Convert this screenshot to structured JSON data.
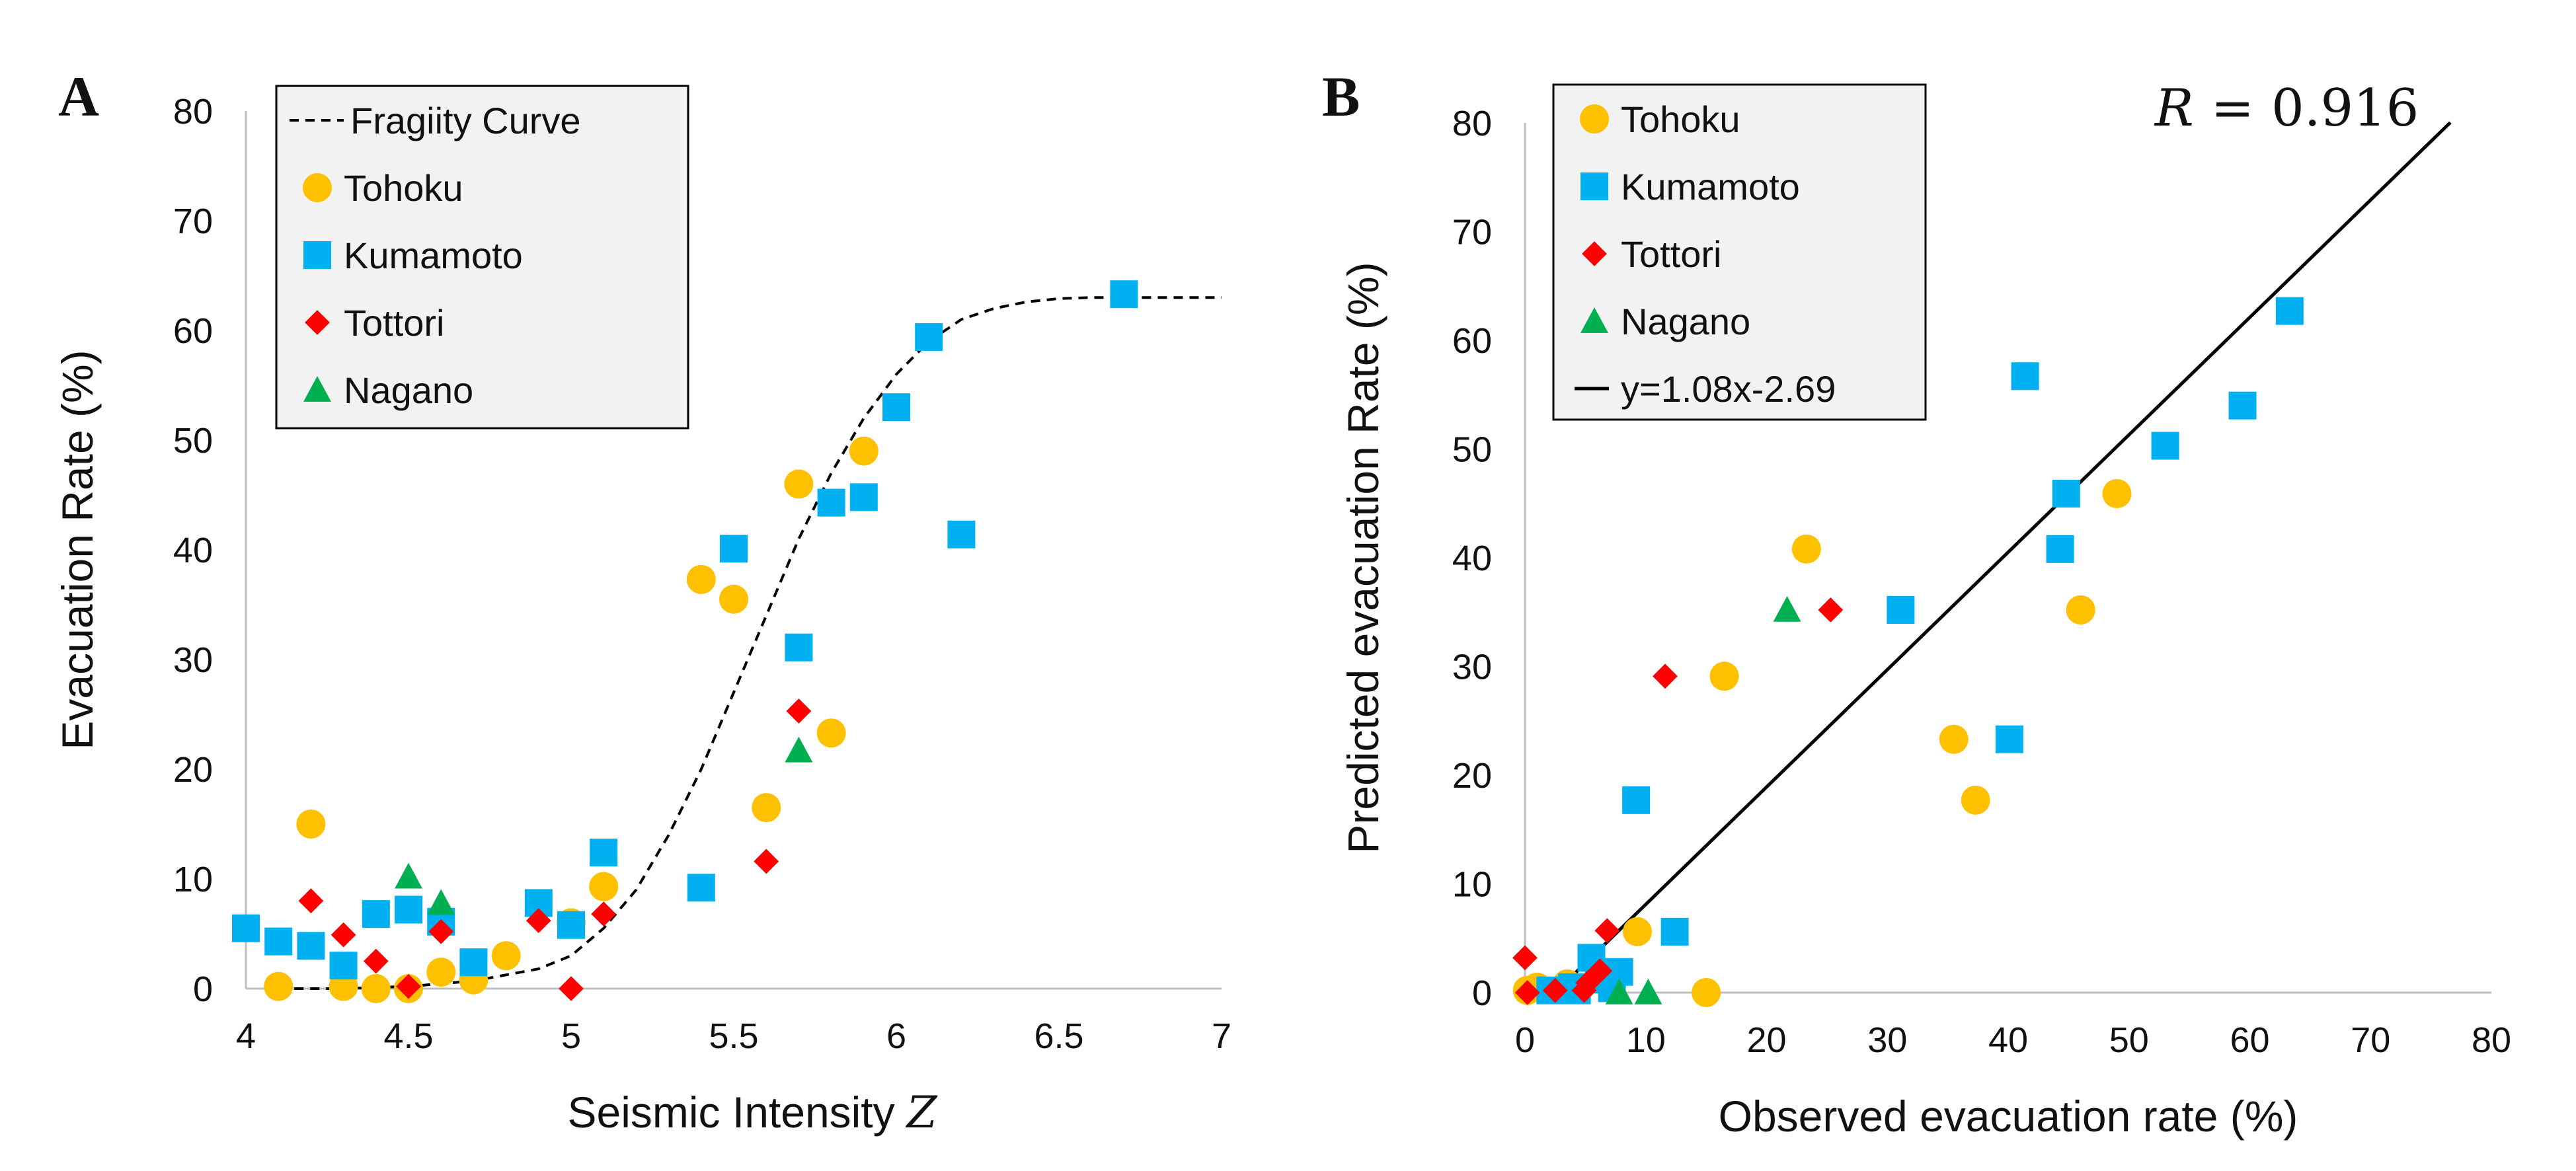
{
  "colors": {
    "Tohoku": "#FFC000",
    "Kumamoto": "#00B0F0",
    "Tottori": "#FF0000",
    "Nagano": "#00B050",
    "fit": "#000000",
    "legend_bg": "#F2F2F2"
  },
  "chart_data": [
    {
      "panel": "A",
      "type": "scatter",
      "xlabel": "Seismic Intensity",
      "xlabel_symbol": "Z",
      "ylabel": "Evacuation Rate (%)",
      "xlim": [
        4,
        7
      ],
      "ylim": [
        0,
        80
      ],
      "xticks": [
        "4",
        "4.5",
        "5",
        "5.5",
        "6",
        "6.5",
        "7"
      ],
      "yticks": [
        "0",
        "10",
        "20",
        "30",
        "40",
        "50",
        "60",
        "70",
        "80"
      ],
      "legend_position": "top-left",
      "legend": [
        "Fragiity Curve",
        "Tohoku",
        "Kumamoto",
        "Tottori",
        "Nagano"
      ],
      "curve": {
        "name": "Fragiity Curve",
        "style": "dashed",
        "x": [
          4.1,
          4.3,
          4.5,
          4.7,
          4.9,
          5.0,
          5.1,
          5.2,
          5.3,
          5.4,
          5.5,
          5.6,
          5.7,
          5.8,
          5.9,
          6.0,
          6.1,
          6.2,
          6.3,
          6.4,
          6.5,
          6.6,
          6.7,
          6.8,
          7.0
        ],
        "y": [
          0,
          0,
          0.2,
          0.7,
          1.8,
          3,
          5.5,
          9,
          14,
          20,
          27,
          34,
          41,
          47,
          52,
          56,
          59,
          61,
          62,
          62.6,
          62.9,
          63,
          63,
          63,
          63
        ]
      },
      "series": [
        {
          "name": "Tohoku",
          "marker": "circle",
          "x": [
            4.1,
            4.2,
            4.3,
            4.4,
            4.5,
            4.6,
            4.7,
            4.8,
            5.0,
            5.1,
            5.4,
            5.5,
            5.6,
            5.7,
            5.8,
            5.9
          ],
          "y": [
            0.2,
            15,
            0.2,
            0,
            0,
            1.5,
            0.8,
            3,
            6,
            9.3,
            37.3,
            35.5,
            16.5,
            46,
            23.3,
            49
          ]
        },
        {
          "name": "Kumamoto",
          "marker": "square",
          "x": [
            4.0,
            4.1,
            4.2,
            4.3,
            4.4,
            4.5,
            4.6,
            4.7,
            4.9,
            5.0,
            5.1,
            5.4,
            5.5,
            5.7,
            5.8,
            5.9,
            6.0,
            6.1,
            6.2,
            6.7
          ],
          "y": [
            5.5,
            4.3,
            3.9,
            2.1,
            6.8,
            7.2,
            6.1,
            2.4,
            7.8,
            5.8,
            12.4,
            9.2,
            40.1,
            31.1,
            44.3,
            44.8,
            53.0,
            59.4,
            41.4,
            63.3
          ]
        },
        {
          "name": "Tottori",
          "marker": "diamond",
          "x": [
            4.2,
            4.3,
            4.4,
            4.5,
            4.6,
            4.9,
            5.0,
            5.1,
            5.6,
            5.7
          ],
          "y": [
            8.0,
            4.9,
            2.5,
            0.2,
            5.2,
            6.2,
            0.0,
            6.8,
            11.6,
            25.3
          ]
        },
        {
          "name": "Nagano",
          "marker": "triangle",
          "x": [
            4.5,
            4.6,
            5.7
          ],
          "y": [
            10.2,
            7.8,
            21.7
          ]
        }
      ]
    },
    {
      "panel": "B",
      "type": "scatter",
      "xlabel": "Observed evacuation rate (%)",
      "ylabel": "Predicted evacuation Rate (%)",
      "xlim": [
        0,
        80
      ],
      "ylim": [
        0,
        80
      ],
      "xticks": [
        "0",
        "10",
        "20",
        "30",
        "40",
        "50",
        "60",
        "70",
        "80"
      ],
      "yticks": [
        "0",
        "10",
        "20",
        "30",
        "40",
        "50",
        "60",
        "70",
        "80"
      ],
      "legend_position": "top-left",
      "legend": [
        "Tohoku",
        "Kumamoto",
        "Tottori",
        "Nagano",
        "y=1.08x-2.69"
      ],
      "annotation": {
        "lhs": "R",
        "eq": "=",
        "value": "0.916"
      },
      "fit_line": {
        "name": "y=1.08x-2.69",
        "slope": 1.08,
        "intercept": -2.69,
        "x_range": [
          2.5,
          76.6
        ]
      },
      "series": [
        {
          "name": "Tohoku",
          "marker": "circle",
          "x": [
            0.2,
            1.0,
            3.5,
            9.3,
            15.0,
            16.5,
            23.3,
            35.5,
            37.3,
            46.0,
            46.0,
            49.0
          ],
          "y": [
            0.2,
            0.5,
            0.8,
            5.6,
            0.0,
            29.1,
            40.8,
            23.3,
            17.7,
            35.2,
            35.2,
            45.9
          ]
        },
        {
          "name": "Kumamoto",
          "marker": "square",
          "x": [
            2.1,
            3.9,
            4.3,
            5.5,
            6.1,
            7.2,
            7.8,
            9.2,
            12.4,
            31.1,
            40.1,
            41.4,
            44.3,
            44.8,
            53.0,
            59.4,
            63.3
          ],
          "y": [
            0.2,
            0.5,
            0.2,
            3.2,
            1.2,
            0.4,
            1.9,
            17.7,
            5.6,
            35.2,
            23.3,
            56.7,
            40.8,
            45.9,
            50.3,
            54.0,
            62.7
          ]
        },
        {
          "name": "Tottori",
          "marker": "diamond",
          "x": [
            0.0,
            0.2,
            2.5,
            4.9,
            5.2,
            6.2,
            6.8,
            11.6,
            25.3
          ],
          "y": [
            3.2,
            0.0,
            0.2,
            0.2,
            0.9,
            2.0,
            5.7,
            29.1,
            35.2
          ]
        },
        {
          "name": "Nagano",
          "marker": "triangle",
          "x": [
            7.8,
            10.2,
            21.7
          ],
          "y": [
            0.0,
            0.0,
            35.2
          ]
        }
      ]
    }
  ]
}
